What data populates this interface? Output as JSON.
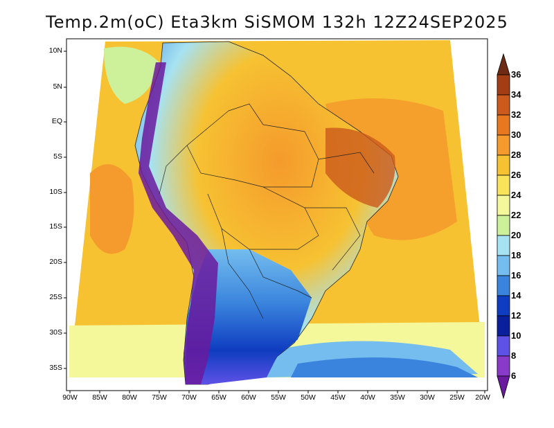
{
  "title": "Temp.2m(oC) Eta3km SiSMOM 132h 12Z24SEP2025",
  "map": {
    "lat_labels": [
      "10N",
      "5N",
      "EQ",
      "5S",
      "10S",
      "15S",
      "20S",
      "25S",
      "30S",
      "35S"
    ],
    "lon_labels": [
      "90W",
      "85W",
      "80W",
      "75W",
      "70W",
      "65W",
      "60W",
      "55W",
      "50W",
      "45W",
      "40W",
      "35W",
      "30W",
      "25W",
      "20W"
    ]
  },
  "colorbar": {
    "labels": [
      "36",
      "34",
      "32",
      "30",
      "28",
      "26",
      "24",
      "22",
      "20",
      "18",
      "16",
      "14",
      "12",
      "10",
      "8",
      "6"
    ],
    "colors": [
      "#6e2a12",
      "#a33d16",
      "#cc5a1c",
      "#e8781f",
      "#f59a2c",
      "#f6c232",
      "#f9e35a",
      "#f4f79a",
      "#cdf09a",
      "#a6e2f2",
      "#74bdee",
      "#3a84dd",
      "#0f3cc0",
      "#0a1f9c",
      "#5e52e6",
      "#8a3ac8",
      "#6a1a9e"
    ]
  }
}
